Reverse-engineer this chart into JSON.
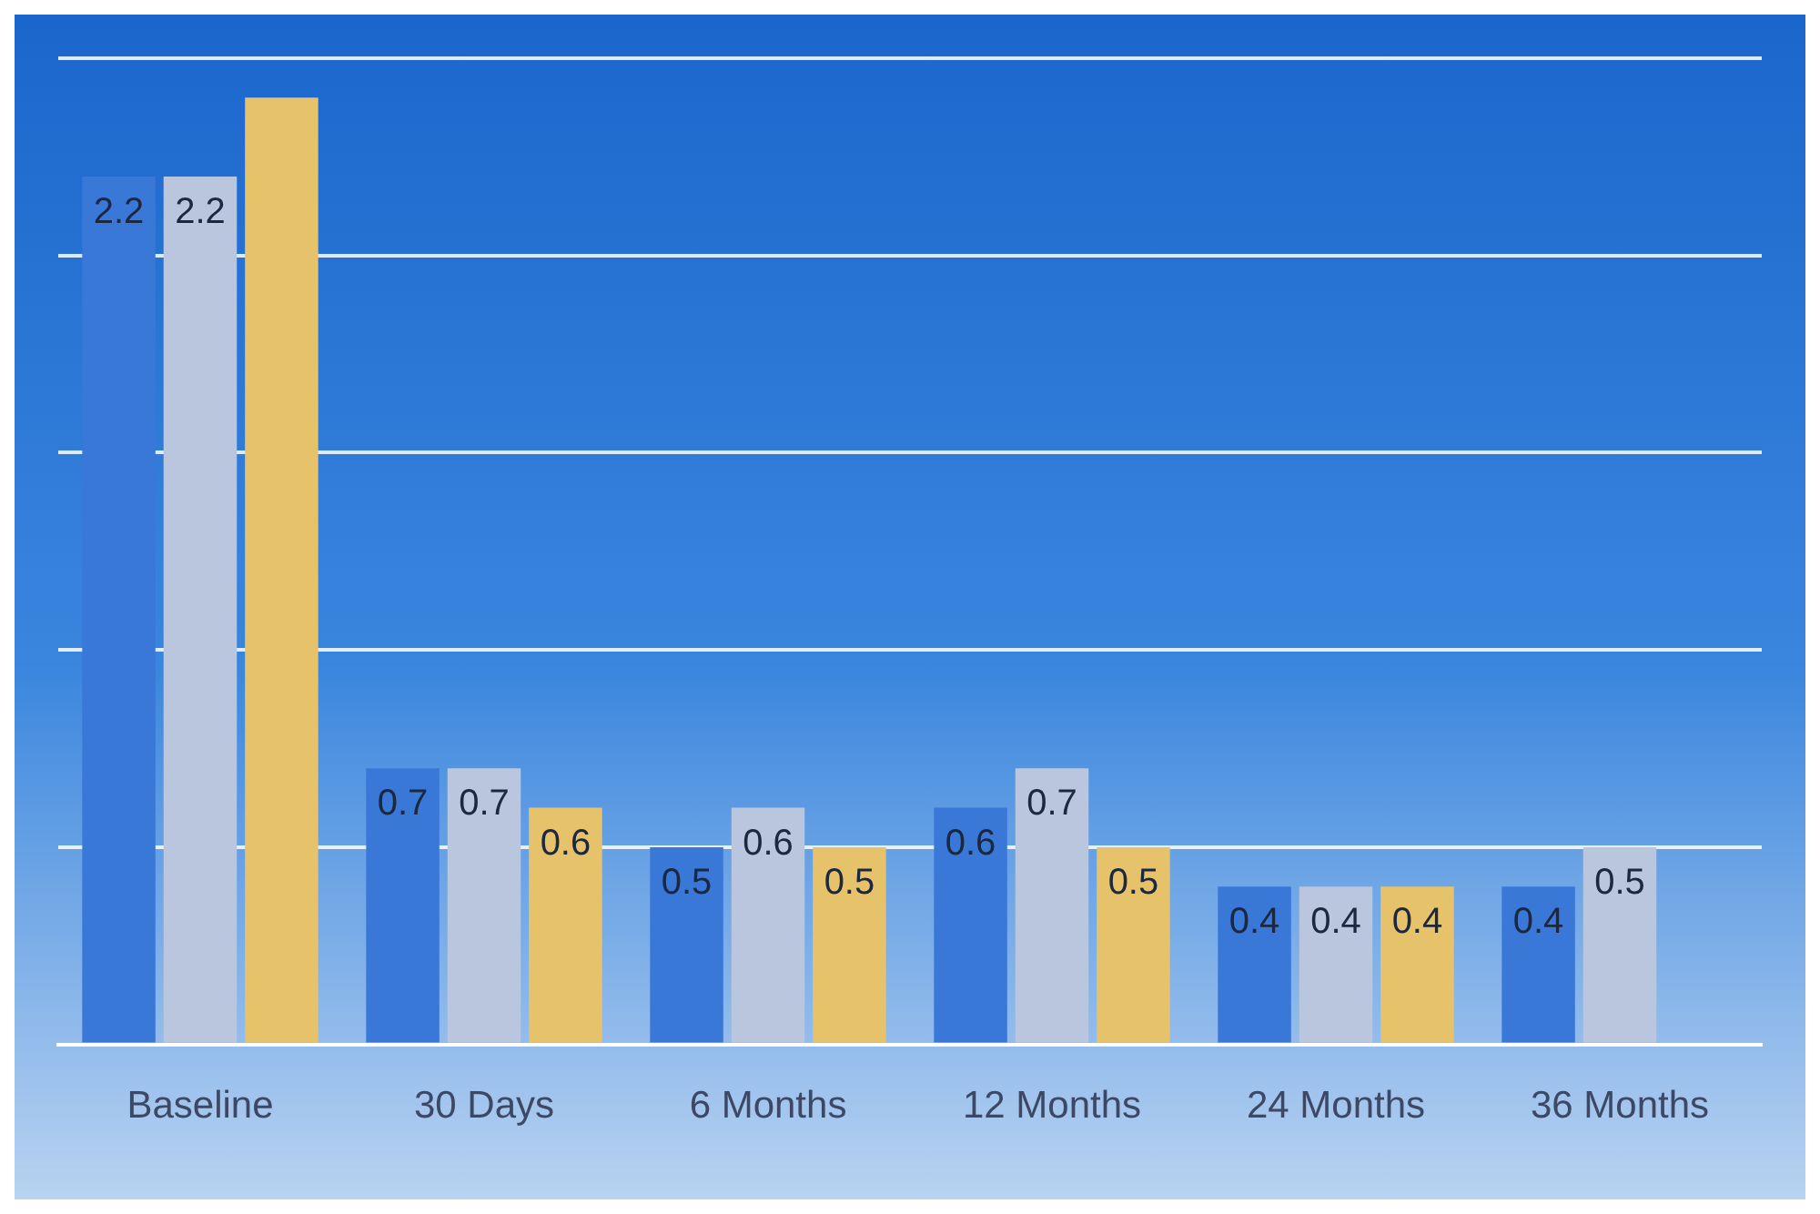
{
  "chart_data": {
    "type": "bar",
    "categories": [
      "Baseline",
      "30 Days",
      "6 Months",
      "12 Months",
      "24 Months",
      "36 Months"
    ],
    "series": [
      {
        "color": "#3a78d8",
        "values": [
          2.2,
          0.7,
          0.5,
          0.6,
          0.4,
          0.4
        ],
        "value_labels": [
          "2.2",
          "0.7",
          "0.5",
          "0.6",
          "0.4",
          "0.4"
        ]
      },
      {
        "color": "#b9c6de",
        "values": [
          2.2,
          0.7,
          0.6,
          0.7,
          0.4,
          0.5
        ],
        "value_labels": [
          "2.2",
          "0.7",
          "0.6",
          "0.7",
          "0.4",
          "0.5"
        ]
      },
      {
        "color": "#e6c36a",
        "values": [
          2.4,
          0.6,
          0.5,
          0.5,
          0.4,
          null
        ],
        "value_labels": [
          null,
          "0.6",
          "0.5",
          "0.5",
          "0.4",
          null
        ]
      }
    ],
    "ylim": [
      0,
      2.5
    ],
    "yticks": [
      {
        "value": 0,
        "label": null
      },
      {
        "value": 0.5,
        "label": null
      },
      {
        "value": 1,
        "label": null
      },
      {
        "value": 1.5,
        "label": null
      },
      {
        "value": 2,
        "label": null
      },
      {
        "value": 2.5,
        "label": null
      }
    ],
    "tick_labels": "x",
    "grid": "y"
  }
}
